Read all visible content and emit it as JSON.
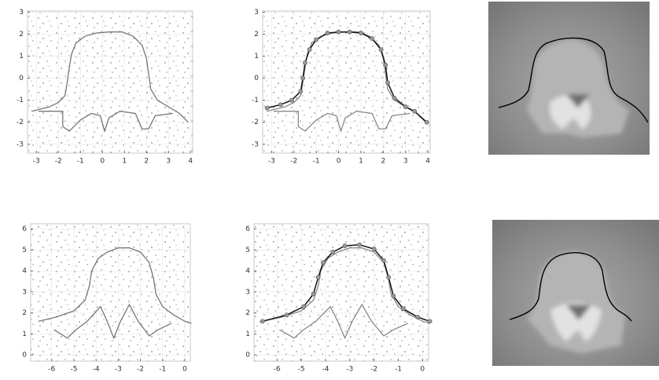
{
  "chart_data": [
    {
      "type": "line",
      "xlim": [
        -3.4,
        4.1
      ],
      "ylim": [
        -3.4,
        3.05
      ],
      "xticks": [
        -3,
        -2,
        -1,
        0,
        1,
        2,
        3,
        4
      ],
      "yticks": [
        -3,
        -2,
        -1,
        0,
        1,
        2,
        3
      ],
      "grid": true,
      "series": [
        {
          "color": "#777777",
          "markers": false,
          "x": [
            -3.2,
            -2.8,
            -2.4,
            -2,
            -1.7,
            -1.6,
            -1.5,
            -1.4,
            -1.2,
            -0.8,
            -0.3,
            0.3,
            0.9,
            1.4,
            1.8,
            2,
            2.1,
            2.2,
            2.5,
            3,
            3.5,
            3.9
          ],
          "y": [
            -1.5,
            -1.4,
            -1.3,
            -1.1,
            -0.8,
            -0.2,
            0.5,
            1.1,
            1.6,
            1.9,
            2.05,
            2.1,
            2.1,
            1.9,
            1.5,
            0.9,
            0.2,
            -0.5,
            -1,
            -1.3,
            -1.6,
            -2
          ]
        },
        {
          "color": "#777777",
          "markers": false,
          "x": [
            -2.9,
            -1.8,
            -1.8,
            -1.5,
            -1,
            -0.5,
            -0.1,
            0.1,
            0.3,
            0.8,
            1.5,
            1.8,
            2.1,
            2.4,
            3.2
          ],
          "y": [
            -1.5,
            -1.5,
            -2.2,
            -2.4,
            -1.9,
            -1.6,
            -1.7,
            -2.4,
            -1.8,
            -1.5,
            -1.6,
            -2.3,
            -2.3,
            -1.7,
            -1.6
          ]
        }
      ]
    },
    {
      "type": "line",
      "xlim": [
        -3.4,
        4.1
      ],
      "ylim": [
        -3.4,
        3.05
      ],
      "xticks": [
        -3,
        -2,
        -1,
        0,
        1,
        2,
        3,
        4
      ],
      "yticks": [
        -3,
        -2,
        -1,
        0,
        1,
        2,
        3
      ],
      "grid": true,
      "series": [
        {
          "color": "#888888",
          "markers": false,
          "x": [
            -3.2,
            -2.8,
            -2.4,
            -2,
            -1.7,
            -1.6,
            -1.5,
            -1.4,
            -1.2,
            -0.8,
            -0.3,
            0.3,
            0.9,
            1.4,
            1.8,
            2,
            2.1,
            2.2,
            2.5,
            3,
            3.5,
            3.9
          ],
          "y": [
            -1.5,
            -1.4,
            -1.3,
            -1.1,
            -0.8,
            -0.2,
            0.5,
            1.1,
            1.6,
            1.9,
            2.05,
            2.1,
            2.1,
            1.9,
            1.5,
            0.9,
            0.2,
            -0.5,
            -1,
            -1.3,
            -1.6,
            -2
          ]
        },
        {
          "color": "#888888",
          "markers": false,
          "x": [
            -2.9,
            -1.8,
            -1.8,
            -1.5,
            -1,
            -0.5,
            -0.1,
            0.1,
            0.3,
            0.8,
            1.5,
            1.8,
            2.1,
            2.4,
            3.2
          ],
          "y": [
            -1.5,
            -1.5,
            -2.2,
            -2.4,
            -1.9,
            -1.6,
            -1.7,
            -2.4,
            -1.8,
            -1.5,
            -1.6,
            -2.3,
            -2.3,
            -1.7,
            -1.6
          ]
        },
        {
          "color": "#111111",
          "markers": true,
          "x": [
            -3.2,
            -2.6,
            -2.1,
            -1.7,
            -1.6,
            -1.5,
            -1.3,
            -1,
            -0.5,
            0,
            0.5,
            1,
            1.5,
            1.9,
            2.1,
            2.2,
            2.5,
            3,
            3.4,
            3.95
          ],
          "y": [
            -1.35,
            -1.2,
            -1,
            -0.6,
            0,
            0.7,
            1.3,
            1.75,
            2.05,
            2.1,
            2.1,
            2.05,
            1.8,
            1.3,
            0.6,
            -0.2,
            -0.9,
            -1.3,
            -1.5,
            -2
          ]
        }
      ]
    },
    {
      "type": "line",
      "xlim": [
        -6.95,
        0.25
      ],
      "ylim": [
        -0.3,
        6.25
      ],
      "xticks": [
        -6,
        -5,
        -4,
        -3,
        -2,
        -1,
        0
      ],
      "yticks": [
        0,
        1,
        2,
        3,
        4,
        5,
        6
      ],
      "grid": true,
      "series": [
        {
          "color": "#777777",
          "markers": false,
          "x": [
            -6.6,
            -5.8,
            -5,
            -4.5,
            -4.3,
            -4.2,
            -3.9,
            -3.5,
            -3,
            -2.5,
            -2,
            -1.6,
            -1.4,
            -1.3,
            -1,
            -0.5,
            0,
            0.3
          ],
          "y": [
            1.6,
            1.8,
            2.1,
            2.6,
            3.3,
            4,
            4.6,
            4.9,
            5.1,
            5.1,
            4.9,
            4.4,
            3.6,
            2.9,
            2.3,
            1.9,
            1.6,
            1.5
          ]
        },
        {
          "color": "#777777",
          "markers": false,
          "x": [
            -5.9,
            -5.3,
            -4.9,
            -4.4,
            -3.8,
            -3.5,
            -3.2,
            -2.9,
            -2.5,
            -2.1,
            -1.6,
            -1.2,
            -0.6
          ],
          "y": [
            1.2,
            0.8,
            1.2,
            1.6,
            2.3,
            1.6,
            0.8,
            1.6,
            2.4,
            1.6,
            0.9,
            1.2,
            1.5
          ]
        }
      ]
    },
    {
      "type": "line",
      "xlim": [
        -6.95,
        0.25
      ],
      "ylim": [
        -0.3,
        6.25
      ],
      "xticks": [
        -6,
        -5,
        -4,
        -3,
        -2,
        -1,
        0
      ],
      "yticks": [
        0,
        1,
        2,
        3,
        4,
        5,
        6
      ],
      "grid": true,
      "series": [
        {
          "color": "#888888",
          "markers": false,
          "x": [
            -6.6,
            -5.8,
            -5,
            -4.5,
            -4.3,
            -4.2,
            -3.9,
            -3.5,
            -3,
            -2.5,
            -2,
            -1.6,
            -1.4,
            -1.3,
            -1,
            -0.5,
            0,
            0.3
          ],
          "y": [
            1.6,
            1.8,
            2.1,
            2.6,
            3.3,
            4,
            4.6,
            4.9,
            5.1,
            5.1,
            4.9,
            4.4,
            3.6,
            2.9,
            2.3,
            1.9,
            1.6,
            1.5
          ]
        },
        {
          "color": "#888888",
          "markers": false,
          "x": [
            -5.9,
            -5.3,
            -4.9,
            -4.4,
            -3.8,
            -3.5,
            -3.2,
            -2.9,
            -2.5,
            -2.1,
            -1.6,
            -1.2,
            -0.6
          ],
          "y": [
            1.2,
            0.8,
            1.2,
            1.6,
            2.3,
            1.6,
            0.8,
            1.6,
            2.4,
            1.6,
            0.9,
            1.2,
            1.5
          ]
        },
        {
          "color": "#111111",
          "markers": true,
          "x": [
            -6.6,
            -5.6,
            -4.9,
            -4.5,
            -4.3,
            -4.1,
            -3.7,
            -3.2,
            -2.6,
            -2,
            -1.6,
            -1.4,
            -1.2,
            -0.8,
            -0.2,
            0.3
          ],
          "y": [
            1.6,
            1.9,
            2.3,
            2.9,
            3.7,
            4.4,
            4.9,
            5.2,
            5.25,
            5.05,
            4.5,
            3.7,
            2.8,
            2.2,
            1.8,
            1.6
          ]
        }
      ]
    }
  ]
}
